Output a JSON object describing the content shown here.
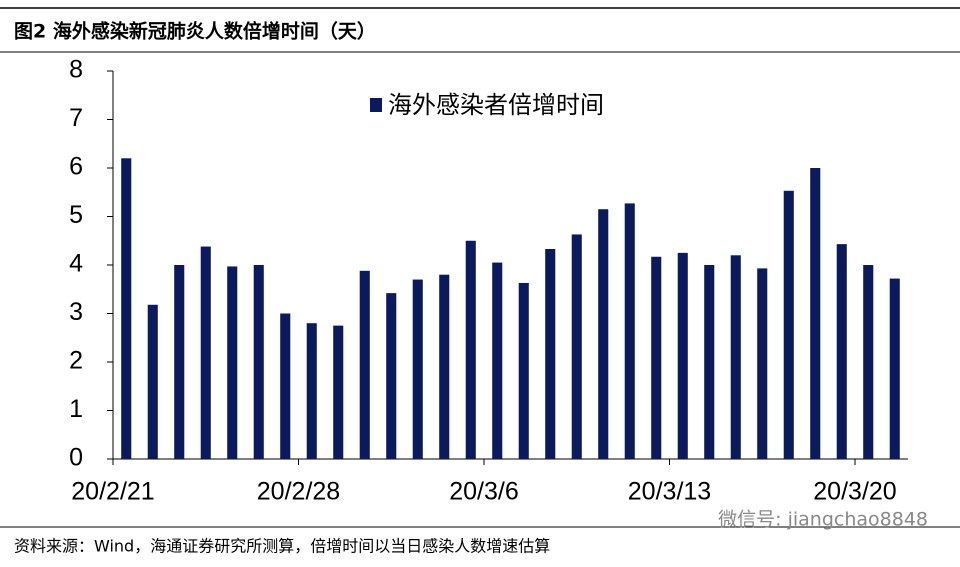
{
  "chart_data": {
    "type": "bar",
    "title": "图2  海外感染新冠肺炎人数倍增时间（天）",
    "source": "资料来源：Wind，海通证券研究所测算，倍增时间以当日感染人数增速估算",
    "watermark": "微信号: jiangchao8848",
    "series": [
      {
        "name": "海外感染者倍增时间",
        "color": "#0a1a5c",
        "values": [
          6.2,
          3.18,
          4.0,
          4.38,
          3.97,
          4.0,
          3.0,
          2.8,
          2.75,
          3.88,
          3.42,
          3.7,
          3.8,
          4.5,
          4.05,
          3.63,
          4.33,
          4.63,
          5.15,
          5.27,
          4.17,
          4.25,
          4.0,
          4.2,
          3.93,
          5.53,
          6.0,
          4.43,
          4.0,
          3.72
        ]
      }
    ],
    "categories": [
      "20/2/21",
      null,
      null,
      null,
      null,
      null,
      null,
      "20/2/28",
      null,
      null,
      null,
      null,
      null,
      null,
      "20/3/6",
      null,
      null,
      null,
      null,
      null,
      null,
      "20/3/13",
      null,
      null,
      null,
      null,
      null,
      null,
      "20/3/20",
      null
    ],
    "ylim": [
      0,
      8
    ],
    "yticks": [
      0,
      1,
      2,
      3,
      4,
      5,
      6,
      7,
      8
    ],
    "grid": false
  }
}
